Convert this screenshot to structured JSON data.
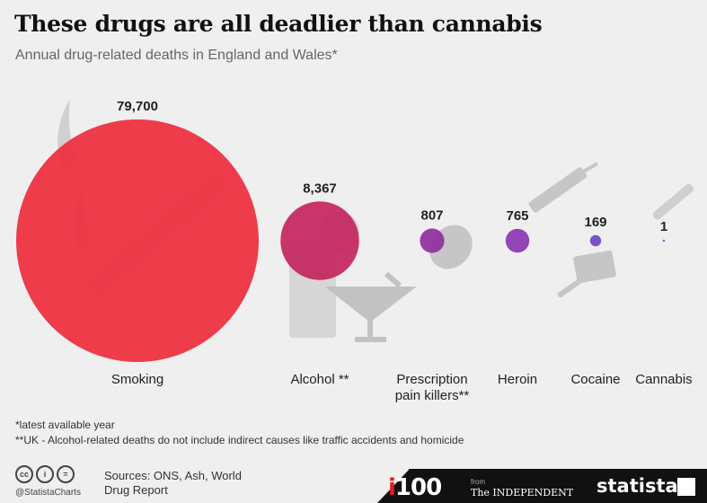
{
  "title": "These drugs are all deadlier than cannabis",
  "subtitle": "Annual drug-related deaths in England and Wales*",
  "chart_data": {
    "type": "bubble",
    "categories": [
      "Smoking",
      "Alcohol **",
      "Prescription pain killers**",
      "Heroin",
      "Cocaine",
      "Cannabis"
    ],
    "category_lines": [
      [
        "Smoking"
      ],
      [
        "Alcohol **"
      ],
      [
        "Prescription",
        "pain killers**"
      ],
      [
        "Heroin"
      ],
      [
        "Cocaine"
      ],
      [
        "Cannabis"
      ]
    ],
    "values": [
      79700,
      8367,
      807,
      765,
      169,
      1
    ],
    "value_labels": [
      "79,700",
      "8,367",
      "807",
      "765",
      "169",
      "1"
    ],
    "colors": [
      "#ee2d3d",
      "#c4255f",
      "#8e2f9c",
      "#8a36b0",
      "#6a48c6",
      "#5b4fcf"
    ],
    "scale": "bubble area proportional to value",
    "legend": "none",
    "grid": false
  },
  "footnotes": [
    "*latest available year",
    "**UK - Alcohol-related deaths do not include indirect causes like traffic accidents and homicide"
  ],
  "footer": {
    "handle": "@StatistaCharts",
    "sources": "Sources: ONS, Ash, World Drug Report",
    "i100_prefix": "i",
    "i100_suffix": "100",
    "from": "from",
    "independent": "The INDEPENDENT",
    "brand": "statista"
  }
}
